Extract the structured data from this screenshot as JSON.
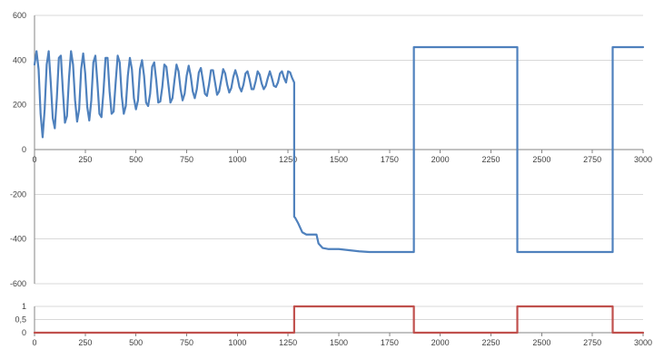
{
  "chart_data": [
    {
      "type": "line",
      "xlim": [
        0,
        3000
      ],
      "ylim": [
        -600,
        600
      ],
      "x_ticks": [
        "0",
        "250",
        "500",
        "750",
        "1000",
        "1250",
        "1500",
        "1750",
        "2000",
        "2250",
        "2500",
        "2750",
        "3000"
      ],
      "y_ticks": [
        "600",
        "400",
        "200",
        "0",
        "-200",
        "-400",
        "-600"
      ],
      "grid": "horizontal",
      "series": [
        {
          "color": "#4f81bd",
          "x": [
            0,
            10,
            20,
            30,
            40,
            50,
            60,
            70,
            80,
            90,
            100,
            110,
            120,
            130,
            140,
            150,
            160,
            170,
            180,
            190,
            200,
            210,
            220,
            230,
            240,
            250,
            260,
            270,
            280,
            290,
            300,
            310,
            320,
            330,
            340,
            350,
            360,
            370,
            380,
            390,
            400,
            410,
            420,
            430,
            440,
            450,
            460,
            470,
            480,
            490,
            500,
            510,
            520,
            530,
            540,
            550,
            560,
            570,
            580,
            590,
            600,
            610,
            620,
            630,
            640,
            650,
            660,
            670,
            680,
            690,
            700,
            710,
            720,
            730,
            740,
            750,
            760,
            770,
            780,
            790,
            800,
            810,
            820,
            830,
            840,
            850,
            860,
            870,
            880,
            890,
            900,
            910,
            920,
            930,
            940,
            950,
            960,
            970,
            980,
            990,
            1000,
            1010,
            1020,
            1030,
            1040,
            1050,
            1060,
            1070,
            1080,
            1090,
            1100,
            1110,
            1120,
            1130,
            1140,
            1150,
            1160,
            1170,
            1180,
            1190,
            1200,
            1210,
            1220,
            1230,
            1240,
            1250,
            1260,
            1270,
            1280,
            1280,
            1285,
            1300,
            1320,
            1340,
            1360,
            1390,
            1400,
            1420,
            1450,
            1500,
            1550,
            1600,
            1650,
            1700,
            1750,
            1800,
            1850,
            1870,
            1870,
            2380,
            2380,
            2850,
            2850,
            3000
          ],
          "y": [
            380,
            440,
            360,
            160,
            55,
            180,
            380,
            440,
            300,
            140,
            95,
            230,
            410,
            420,
            260,
            120,
            150,
            320,
            440,
            380,
            220,
            125,
            180,
            360,
            430,
            340,
            190,
            130,
            220,
            390,
            420,
            300,
            160,
            145,
            260,
            410,
            410,
            260,
            160,
            170,
            300,
            420,
            390,
            240,
            160,
            195,
            330,
            410,
            360,
            230,
            180,
            220,
            360,
            400,
            330,
            210,
            195,
            250,
            370,
            390,
            310,
            210,
            215,
            280,
            380,
            370,
            290,
            210,
            230,
            310,
            380,
            350,
            270,
            220,
            250,
            330,
            375,
            330,
            260,
            230,
            270,
            345,
            365,
            310,
            250,
            240,
            290,
            355,
            355,
            300,
            245,
            260,
            310,
            360,
            340,
            290,
            255,
            275,
            325,
            355,
            325,
            280,
            260,
            290,
            340,
            350,
            315,
            270,
            270,
            305,
            350,
            335,
            295,
            270,
            285,
            320,
            350,
            320,
            285,
            280,
            300,
            340,
            350,
            320,
            300,
            350,
            345,
            320,
            300,
            -300,
            -305,
            -330,
            -370,
            -380,
            -380,
            -380,
            -420,
            -440,
            -445,
            -445,
            -450,
            -455,
            -458,
            -458,
            -458,
            -458,
            -458,
            -458,
            458,
            458,
            -458,
            -458,
            458,
            458
          ]
        }
      ]
    },
    {
      "type": "line",
      "xlim": [
        0,
        3000
      ],
      "ylim": [
        0,
        1
      ],
      "x_ticks": [
        "0",
        "250",
        "500",
        "750",
        "1000",
        "1250",
        "1500",
        "1750",
        "2000",
        "2250",
        "2500",
        "2750",
        "3000"
      ],
      "y_ticks": [
        "1",
        "0,5",
        "0"
      ],
      "grid": "horizontal",
      "series": [
        {
          "color": "#c0504d",
          "x": [
            0,
            1280,
            1280,
            1870,
            1870,
            2380,
            2380,
            2850,
            2850,
            3000
          ],
          "y": [
            0,
            0,
            1,
            1,
            0,
            0,
            1,
            1,
            0,
            0
          ]
        }
      ]
    }
  ]
}
